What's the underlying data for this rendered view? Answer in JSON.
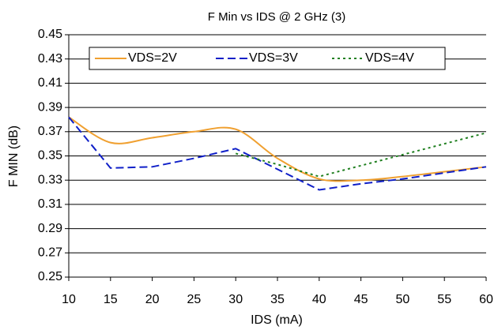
{
  "chart_data": {
    "type": "line",
    "title": "F Min vs IDS @ 2 GHz (3)",
    "x_label": "IDS (mA)",
    "y_label": "F MIN (dB)",
    "x": [
      10,
      15,
      20,
      25,
      30,
      35,
      40,
      45,
      50,
      55,
      60
    ],
    "series": [
      {
        "name": "VDS=2V",
        "color": "#f0a030",
        "dash": "solid",
        "smooth": true,
        "values": [
          0.382,
          0.361,
          0.365,
          0.37,
          0.372,
          0.348,
          0.331,
          0.33,
          0.333,
          0.337,
          0.341
        ]
      },
      {
        "name": "VDS=3V",
        "color": "#1020c8",
        "dash": "dashed",
        "smooth": false,
        "values": [
          0.382,
          0.34,
          0.341,
          0.348,
          0.356,
          0.339,
          0.322,
          0.327,
          0.331,
          0.336,
          0.341
        ]
      },
      {
        "name": "VDS=4V",
        "color": "#208020",
        "dash": "dotted",
        "smooth": false,
        "values": [
          null,
          null,
          null,
          null,
          0.352,
          0.343,
          0.333,
          0.342,
          0.351,
          0.36,
          0.369
        ]
      }
    ],
    "xlim": [
      10,
      60
    ],
    "xticks": [
      10,
      15,
      20,
      25,
      30,
      35,
      40,
      45,
      50,
      55,
      60
    ],
    "ylim": [
      0.25,
      0.45
    ],
    "yticks": [
      {
        "value": 0.25,
        "label": "0.25"
      },
      {
        "value": 0.27,
        "label": "0.27"
      },
      {
        "value": 0.29,
        "label": "0.29"
      },
      {
        "value": 0.31,
        "label": "0.31"
      },
      {
        "value": 0.33,
        "label": "0.33"
      },
      {
        "value": 0.35,
        "label": "0.35"
      },
      {
        "value": 0.37,
        "label": "0.37"
      },
      {
        "value": 0.39,
        "label": "0.39"
      },
      {
        "value": 0.41,
        "label": "0.41"
      },
      {
        "value": 0.43,
        "label": "0.43"
      },
      {
        "value": 0.45,
        "label": "0.45"
      }
    ],
    "grid": true,
    "legend": "top"
  }
}
